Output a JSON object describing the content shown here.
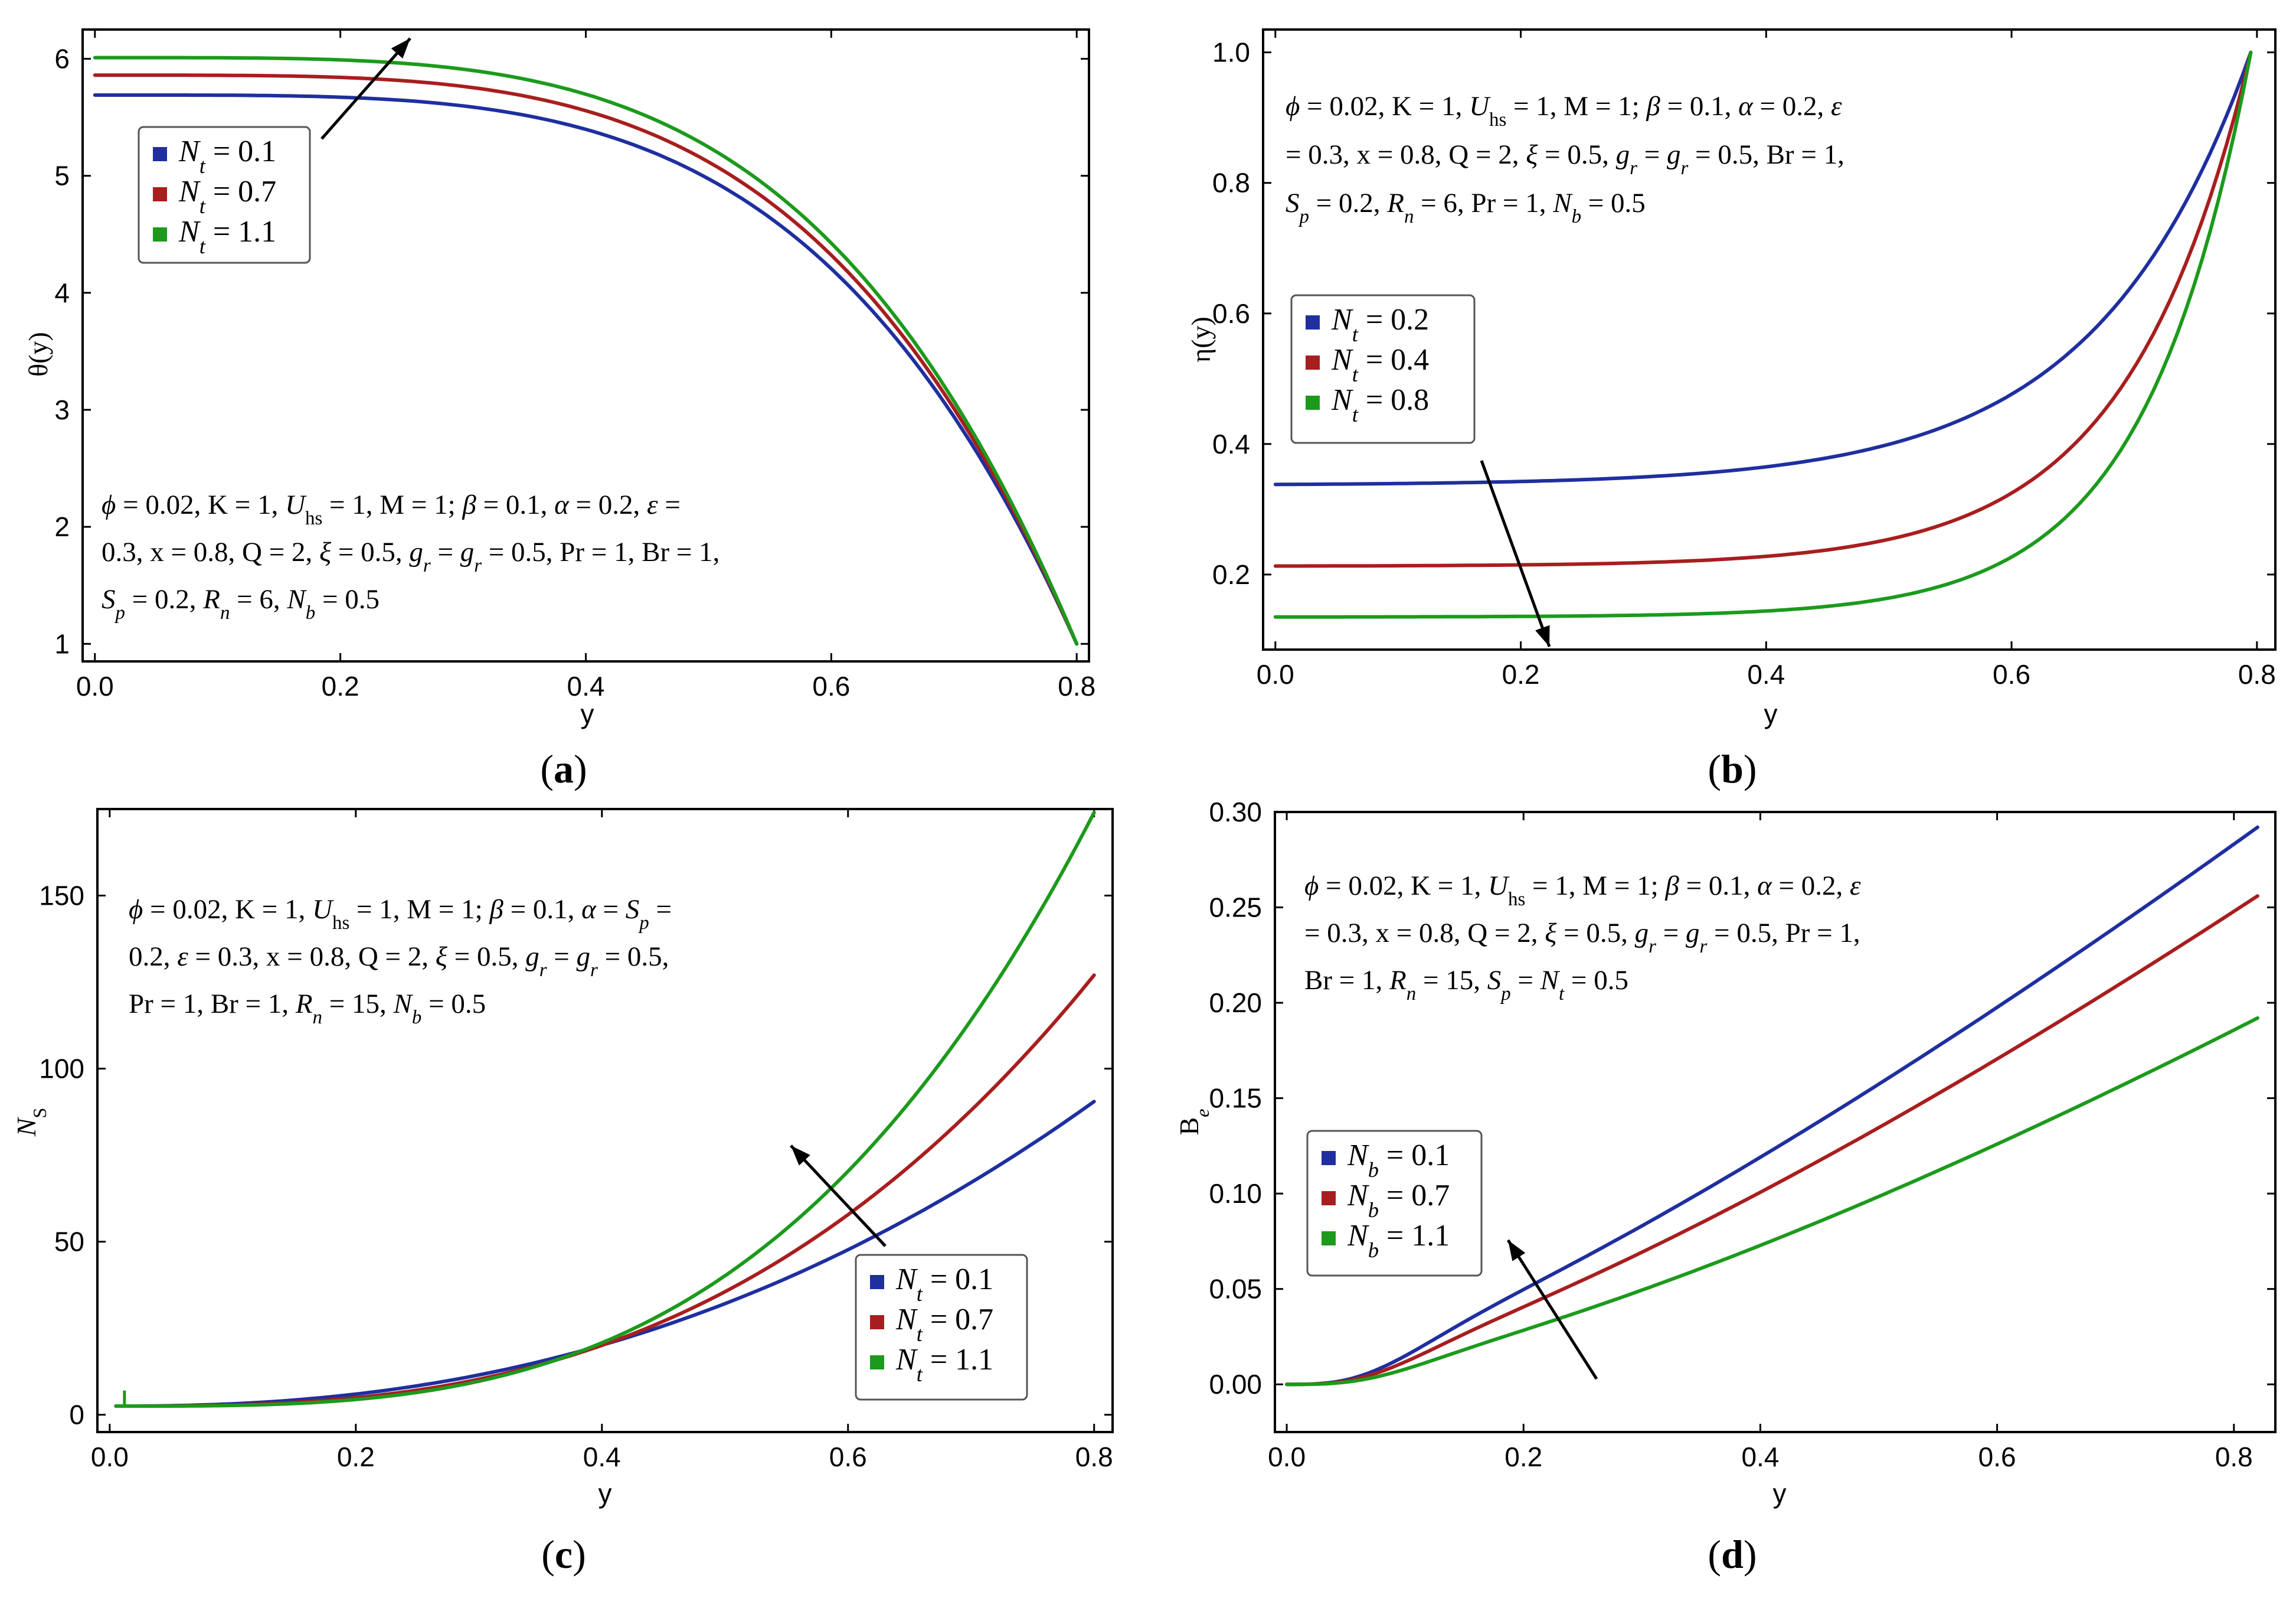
{
  "colors": {
    "blue": "#1f2f9f",
    "red": "#a81e1e",
    "green": "#1c9a1c"
  },
  "chart_data": [
    {
      "id": "a",
      "type": "line",
      "panel_label": "a",
      "xlabel": "y",
      "ylabel": "θ(y)",
      "xlim": [
        -0.01,
        0.81
      ],
      "ylim": [
        0.85,
        6.25
      ],
      "xticks": [
        0.0,
        0.2,
        0.4,
        0.6,
        0.8
      ],
      "xtick_labels": [
        "0.0",
        "0.2",
        "0.4",
        "0.6",
        "0.8"
      ],
      "yticks": [
        1,
        2,
        3,
        4,
        5,
        6
      ],
      "ytick_labels": [
        "1",
        "2",
        "3",
        "4",
        "5",
        "6"
      ],
      "model": "poly",
      "x_end": 0.8,
      "end_value": 1.0,
      "power": 4,
      "series": [
        {
          "name": "N_t = 0.1",
          "color": "blue",
          "start": 5.69
        },
        {
          "name": "N_t = 0.7",
          "color": "red",
          "start": 5.86
        },
        {
          "name": "N_t = 1.1",
          "color": "green",
          "start": 6.01
        }
      ],
      "legend": [
        {
          "sym": "N",
          "sub": "t",
          "value": " = 0.1",
          "color": "blue"
        },
        {
          "sym": "N",
          "sub": "t",
          "value": " = 0.7",
          "color": "red"
        },
        {
          "sym": "N",
          "sub": "t",
          "value": " = 1.1",
          "color": "green"
        }
      ],
      "params": [
        "ϕ = 0.02, K = 1, U_hs = 1, M = 1; β = 0.1, α = 0.2, ε =",
        "0.3, x = 0.8, Q = 2, ξ = 0.5, g_r = g_r = 0.5, Pr = 1, Br = 1,",
        "S_p = 0.2, R_n = 6, N_b = 0.5"
      ]
    },
    {
      "id": "b",
      "type": "line",
      "panel_label": "b",
      "xlabel": "y",
      "ylabel": "η(y)",
      "xlim": [
        -0.01,
        0.815
      ],
      "ylim": [
        0.085,
        1.035
      ],
      "xticks": [
        0.0,
        0.2,
        0.4,
        0.6,
        0.8
      ],
      "xtick_labels": [
        "0.0",
        "0.2",
        "0.4",
        "0.6",
        "0.8"
      ],
      "yticks": [
        0.2,
        0.4,
        0.6,
        0.8,
        1.0
      ],
      "ytick_labels": [
        "0.2",
        "0.4",
        "0.6",
        "0.8",
        "1.0"
      ],
      "model": "exp",
      "x_end": 0.795,
      "end_value": 1.0,
      "series": [
        {
          "name": "N_t = 0.2",
          "color": "blue",
          "start": 0.338,
          "k": 8
        },
        {
          "name": "N_t = 0.4",
          "color": "red",
          "start": 0.213,
          "k": 10
        },
        {
          "name": "N_t = 0.8",
          "color": "green",
          "start": 0.135,
          "k": 11.5
        }
      ],
      "legend": [
        {
          "sym": "N",
          "sub": "t",
          "value": " = 0.2",
          "color": "blue"
        },
        {
          "sym": "N",
          "sub": "t",
          "value": " = 0.4",
          "color": "red"
        },
        {
          "sym": "N",
          "sub": "t",
          "value": " = 0.8",
          "color": "green"
        }
      ],
      "params": [
        "ϕ = 0.02, K = 1, U_hs = 1, M = 1; β = 0.1, α = 0.2, ε",
        "= 0.3, x = 0.8, Q = 2, ξ = 0.5, g_r = g_r = 0.5, Br = 1,",
        "S_p = 0.2, R_n = 6, Pr = 1, N_b = 0.5"
      ]
    },
    {
      "id": "c",
      "type": "line",
      "panel_label": "c",
      "xlabel": "y",
      "ylabel": "N_S",
      "xlim": [
        -0.01,
        0.815
      ],
      "ylim": [
        -5,
        175
      ],
      "xticks": [
        0.0,
        0.2,
        0.4,
        0.6,
        0.8
      ],
      "xtick_labels": [
        "0.0",
        "0.2",
        "0.4",
        "0.6",
        "0.8"
      ],
      "yticks": [
        0,
        50,
        100,
        150
      ],
      "ytick_labels": [
        "0",
        "50",
        "100",
        "150"
      ],
      "model": "growth",
      "x_start": 0.005,
      "x_end": 0.8,
      "start_value": 2.5,
      "series": [
        {
          "name": "N_t = 0.1",
          "color": "blue",
          "end": 90.5,
          "power": 2.3
        },
        {
          "name": "N_t = 0.7",
          "color": "red",
          "end": 127,
          "power": 2.8
        },
        {
          "name": "N_t = 1.1",
          "color": "green",
          "end": 174,
          "power": 3.2
        }
      ],
      "legend": [
        {
          "sym": "N",
          "sub": "t",
          "value": " = 0.1",
          "color": "blue"
        },
        {
          "sym": "N",
          "sub": "t",
          "value": " = 0.7",
          "color": "red"
        },
        {
          "sym": "N",
          "sub": "t",
          "value": " = 1.1",
          "color": "green"
        }
      ],
      "params": [
        "ϕ = 0.02, K = 1, U_hs = 1, M = 1; β = 0.1, α = S_p =",
        "0.2, ε = 0.3, x = 0.8, Q = 2, ξ = 0.5, g_r = g_r = 0.5,",
        "Pr = 1, Br = 1, R_n = 15, N_b = 0.5"
      ]
    },
    {
      "id": "d",
      "type": "line",
      "panel_label": "d",
      "xlabel": "y",
      "ylabel": "B_e",
      "xlim": [
        -0.01,
        0.835
      ],
      "ylim": [
        -0.025,
        0.3
      ],
      "xticks": [
        0.0,
        0.2,
        0.4,
        0.6,
        0.8
      ],
      "xtick_labels": [
        "0.0",
        "0.2",
        "0.4",
        "0.6",
        "0.8"
      ],
      "yticks": [
        0.0,
        0.05,
        0.1,
        0.15,
        0.2,
        0.25,
        0.3
      ],
      "ytick_labels": [
        "0.00",
        "0.05",
        "0.10",
        "0.15",
        "0.20",
        "0.25",
        "0.30"
      ],
      "model": "sgrowth",
      "x_end": 0.82,
      "series": [
        {
          "name": "N_b = 0.1",
          "color": "blue",
          "end": 0.292,
          "power": 1.25
        },
        {
          "name": "N_b = 0.7",
          "color": "red",
          "end": 0.256,
          "power": 1.3
        },
        {
          "name": "N_b = 1.1",
          "color": "green",
          "end": 0.192,
          "power": 1.35
        }
      ],
      "legend": [
        {
          "sym": "N",
          "sub": "b",
          "value": " = 0.1",
          "color": "blue"
        },
        {
          "sym": "N",
          "sub": "b",
          "value": " = 0.7",
          "color": "red"
        },
        {
          "sym": "N",
          "sub": "b",
          "value": " = 1.1",
          "color": "green"
        }
      ],
      "params": [
        "ϕ = 0.02, K = 1, U_hs = 1, M = 1; β = 0.1, α = 0.2, ε",
        "= 0.3, x = 0.8, Q = 2, ξ = 0.5, g_r = g_r = 0.5, Pr = 1,",
        "Br = 1, R_n = 15, S_p = N_t = 0.5"
      ]
    }
  ]
}
